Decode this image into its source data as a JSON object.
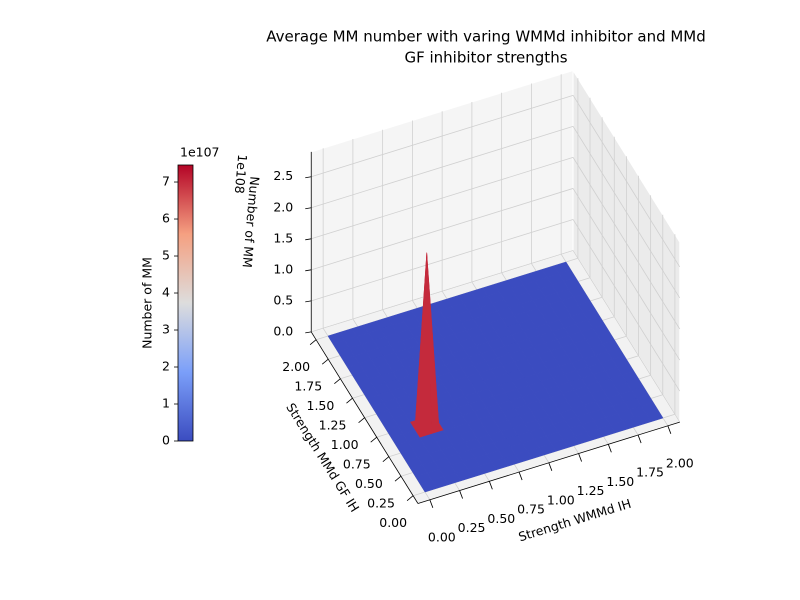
{
  "chart_data": {
    "type": "surface",
    "title": [
      "Average MM number with varing WMMd inhibitor and MMd",
      "GF inhibitor strengths"
    ],
    "xlabel": "Strength WMMd IH",
    "ylabel": "Strength MMd GF IH",
    "zlabel": "Number of MM",
    "z_offset": "1e108",
    "x": [
      0,
      0.1,
      0.2,
      0.3,
      0.4,
      0.5,
      0.6,
      0.7,
      0.8,
      0.9,
      1,
      1.1,
      1.2,
      1.3,
      1.4,
      1.5,
      1.6,
      1.7,
      1.8,
      1.9,
      2
    ],
    "y": [
      0,
      0.1,
      0.2,
      0.3,
      0.4,
      0.5,
      0.6,
      0.7,
      0.8,
      0.9,
      1,
      1.1,
      1.2,
      1.3,
      1.4,
      1.5,
      1.6,
      1.7,
      1.8,
      1.9,
      2
    ],
    "z": [
      [
        0,
        0,
        0,
        0,
        0,
        0,
        0,
        0,
        0,
        0,
        0,
        0,
        0,
        0,
        0,
        0,
        0,
        0,
        0,
        0,
        0
      ],
      [
        0,
        0,
        0,
        0,
        0,
        0,
        0,
        0,
        0,
        0,
        0,
        0,
        0,
        0,
        0,
        0,
        0,
        0,
        0,
        0,
        0
      ],
      [
        0,
        0,
        0,
        0,
        0,
        0,
        0,
        0,
        0,
        0,
        0,
        0,
        0,
        0,
        0,
        0,
        0,
        0,
        0,
        0,
        0
      ],
      [
        0,
        0,
        0,
        0,
        0,
        0,
        0,
        0,
        0,
        0,
        0,
        0,
        0,
        0,
        0,
        0,
        0,
        0,
        0,
        0,
        0
      ],
      [
        0,
        0,
        0,
        0,
        0,
        0,
        0,
        0,
        0,
        0,
        0,
        0,
        0,
        0,
        0,
        0,
        0,
        0,
        0,
        0,
        0
      ],
      [
        0,
        0,
        0,
        0,
        0,
        0,
        0,
        0,
        0,
        0,
        0,
        0,
        0,
        0,
        0,
        0,
        0,
        0,
        0,
        0,
        0
      ],
      [
        0,
        0,
        0,
        0,
        0,
        0,
        0,
        0,
        0,
        0,
        0,
        0,
        0,
        0,
        0,
        0,
        0,
        0,
        0,
        0,
        0
      ],
      [
        0,
        0,
        0,
        2.8e+108,
        0,
        0,
        0,
        0,
        0,
        0,
        0,
        0,
        0,
        0,
        0,
        0,
        0,
        0,
        0,
        0,
        0
      ],
      [
        0,
        0,
        0,
        0,
        0,
        0,
        0,
        0,
        0,
        0,
        0,
        0,
        0,
        0,
        0,
        0,
        0,
        0,
        0,
        0,
        0
      ],
      [
        0,
        0,
        0,
        0,
        0,
        0,
        0,
        0,
        0,
        0,
        0,
        0,
        0,
        0,
        0,
        0,
        0,
        0,
        0,
        0,
        0
      ],
      [
        0,
        0,
        0,
        0,
        0,
        0,
        0,
        0,
        0,
        0,
        0,
        0,
        0,
        0,
        0,
        0,
        0,
        0,
        0,
        0,
        0
      ],
      [
        0,
        0,
        0,
        0,
        0,
        0,
        0,
        0,
        0,
        0,
        0,
        0,
        0,
        0,
        0,
        0,
        0,
        0,
        0,
        0,
        0
      ],
      [
        0,
        0,
        0,
        0,
        0,
        0,
        0,
        0,
        0,
        0,
        0,
        0,
        0,
        0,
        0,
        0,
        0,
        0,
        0,
        0,
        0
      ],
      [
        0,
        0,
        0,
        0,
        0,
        0,
        0,
        0,
        0,
        0,
        0,
        0,
        0,
        0,
        0,
        0,
        0,
        0,
        0,
        0,
        0
      ],
      [
        0,
        0,
        0,
        0,
        0,
        0,
        0,
        0,
        0,
        0,
        0,
        0,
        0,
        0,
        0,
        0,
        0,
        0,
        0,
        0,
        0
      ],
      [
        0,
        0,
        0,
        0,
        0,
        0,
        0,
        0,
        0,
        0,
        0,
        0,
        0,
        0,
        0,
        0,
        0,
        0,
        0,
        0,
        0
      ],
      [
        0,
        0,
        0,
        0,
        0,
        0,
        0,
        0,
        0,
        0,
        0,
        0,
        0,
        0,
        0,
        0,
        0,
        0,
        0,
        0,
        0
      ],
      [
        0,
        0,
        0,
        0,
        0,
        0,
        0,
        0,
        0,
        0,
        0,
        0,
        0,
        0,
        0,
        0,
        0,
        0,
        0,
        0,
        0
      ],
      [
        0,
        0,
        0,
        0,
        0,
        0,
        0,
        0,
        0,
        0,
        0,
        0,
        0,
        0,
        0,
        0,
        0,
        0,
        0,
        0,
        0
      ],
      [
        0,
        0,
        0,
        0,
        0,
        0,
        0,
        0,
        0,
        0,
        0,
        0,
        0,
        0,
        0,
        0,
        0,
        0,
        0,
        0,
        0
      ],
      [
        0,
        0,
        0,
        0,
        0,
        0,
        0,
        0,
        0,
        0,
        0,
        0,
        0,
        0,
        0,
        0,
        0,
        0,
        0,
        0,
        0
      ]
    ],
    "colormap": "coolwarm",
    "xlim": [
      -0.1,
      2.1
    ],
    "ylim": [
      -0.1,
      2.1
    ],
    "zlim": [
      0,
      2.9e+108
    ],
    "xticks": [
      {
        "value": 0,
        "label": "0.00"
      },
      0.25,
      {
        "value": 0.5,
        "label": "0.50"
      },
      0.75,
      {
        "value": 1,
        "label": "1.00"
      },
      1.25,
      {
        "value": 1.5,
        "label": "1.50"
      },
      1.75,
      {
        "value": 2,
        "label": "2.00"
      }
    ],
    "yticks": [
      {
        "value": 0,
        "label": "0.00"
      },
      0.25,
      {
        "value": 0.5,
        "label": "0.50"
      },
      0.75,
      {
        "value": 1,
        "label": "1.00"
      },
      1.25,
      {
        "value": 1.5,
        "label": "1.50"
      },
      1.75,
      {
        "value": 2,
        "label": "2.00"
      }
    ],
    "zticks": [
      {
        "value": 0,
        "label": "0.0"
      },
      {
        "value": 5e+107,
        "label": "0.5"
      },
      {
        "value": 1e+108,
        "label": "1.0"
      },
      {
        "value": 1.5e+108,
        "label": "1.5"
      },
      {
        "value": 2e+108,
        "label": "2.0"
      },
      {
        "value": 2.5e+108,
        "label": "2.5"
      }
    ],
    "grid": true,
    "colorbar": {
      "label": "Number of MM",
      "offset": "1e107",
      "clim": [
        0,
        7.46e+107
      ],
      "ticks": [
        0,
        {
          "value": 1e+107,
          "label": "1"
        },
        {
          "value": 2e+107,
          "label": "2"
        },
        {
          "value": 3e+107,
          "label": "3"
        },
        {
          "value": 4e+107,
          "label": "4"
        },
        {
          "value": 5e+107,
          "label": "5"
        },
        {
          "value": 6e+107,
          "label": "6"
        },
        {
          "value": 7e+107,
          "label": "7"
        }
      ]
    }
  }
}
